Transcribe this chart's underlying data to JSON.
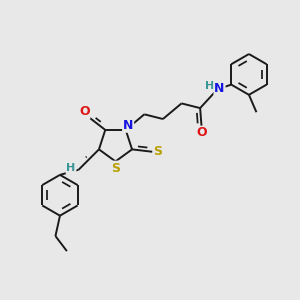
{
  "bg_color": "#e8e8e8",
  "bond_color": "#1a1a1a",
  "bond_lw": 1.4,
  "dbo": 0.012,
  "colors": {
    "N": "#1515e0",
    "O": "#e01515",
    "S": "#b8a000",
    "H": "#3a9595",
    "C": "#1a1a1a"
  },
  "fs": 9.0,
  "fs_small": 8.0
}
